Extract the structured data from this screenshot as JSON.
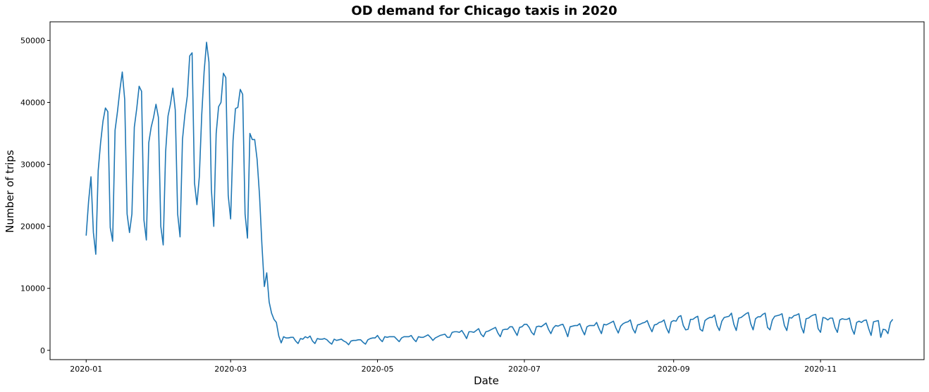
{
  "chart_data": {
    "type": "line",
    "title": "OD demand for Chicago taxis in 2020",
    "xlabel": "Date",
    "ylabel": "Number of trips",
    "xlim": [
      "2019-12-17",
      "2020-12-14"
    ],
    "ylim": [
      -1500,
      53000
    ],
    "grid": false,
    "legend": "none",
    "colors": {
      "line": "#1f77b4",
      "axis": "#000000",
      "background": "#ffffff"
    },
    "x_ticks": [
      {
        "date": "2020-01-01",
        "label": "2020-01"
      },
      {
        "date": "2020-03-01",
        "label": "2020-03"
      },
      {
        "date": "2020-05-01",
        "label": "2020-05"
      },
      {
        "date": "2020-07-01",
        "label": "2020-07"
      },
      {
        "date": "2020-09-01",
        "label": "2020-09"
      },
      {
        "date": "2020-11-01",
        "label": "2020-11"
      }
    ],
    "y_ticks": [
      {
        "value": 0,
        "label": "0"
      },
      {
        "value": 10000,
        "label": "10000"
      },
      {
        "value": 20000,
        "label": "20000"
      },
      {
        "value": 30000,
        "label": "30000"
      },
      {
        "value": 40000,
        "label": "40000"
      },
      {
        "value": 50000,
        "label": "50000"
      }
    ],
    "series": [
      {
        "start_date": "2020-01-01",
        "step_days": 1,
        "values": [
          18500,
          24000,
          28000,
          19000,
          15500,
          29000,
          33500,
          37000,
          39100,
          38500,
          19800,
          17600,
          35500,
          38500,
          42000,
          44900,
          40500,
          22000,
          19000,
          22000,
          36000,
          39000,
          42600,
          41800,
          21000,
          17800,
          33500,
          36000,
          37600,
          39700,
          37600,
          20000,
          17000,
          32000,
          37800,
          39700,
          42300,
          38800,
          22000,
          18300,
          34000,
          38000,
          41000,
          47500,
          48000,
          27000,
          23500,
          28000,
          38000,
          45000,
          49700,
          46500,
          26000,
          20000,
          35000,
          39300,
          40000,
          44700,
          44000,
          25000,
          21200,
          33800,
          39000,
          39200,
          42100,
          41300,
          22000,
          18100,
          35000,
          34000,
          34000,
          30800,
          25000,
          17000,
          10300,
          12500,
          7800,
          6000,
          5000,
          4500,
          2300,
          1200,
          2200,
          2000,
          2000,
          2100,
          2100,
          1500,
          1100,
          1900,
          1800,
          2200,
          2000,
          2300,
          1500,
          1100,
          1900,
          1800,
          1800,
          1900,
          1700,
          1300,
          1000,
          1800,
          1600,
          1700,
          1800,
          1500,
          1300,
          900,
          1500,
          1600,
          1600,
          1700,
          1700,
          1300,
          1000,
          1700,
          1900,
          2000,
          2000,
          2400,
          1800,
          1400,
          2200,
          2100,
          2200,
          2200,
          2200,
          1800,
          1400,
          2000,
          2200,
          2200,
          2200,
          2400,
          1800,
          1400,
          2200,
          2100,
          2100,
          2300,
          2500,
          2100,
          1600,
          2000,
          2200,
          2400,
          2500,
          2600,
          2100,
          2100,
          2900,
          3000,
          3000,
          2900,
          3200,
          2600,
          1900,
          3000,
          3000,
          2900,
          3200,
          3500,
          2600,
          2200,
          3000,
          3100,
          3300,
          3500,
          3700,
          2800,
          2200,
          3300,
          3400,
          3400,
          3800,
          3800,
          3100,
          2400,
          3700,
          3800,
          4200,
          4200,
          3700,
          2900,
          2500,
          3800,
          3900,
          3800,
          4100,
          4400,
          3400,
          2700,
          3600,
          4000,
          3900,
          4100,
          4200,
          3300,
          2200,
          3800,
          3900,
          4000,
          4000,
          4300,
          3300,
          2500,
          3800,
          4000,
          4000,
          4000,
          4500,
          3500,
          2700,
          4200,
          4100,
          4300,
          4500,
          4700,
          3600,
          2800,
          3900,
          4300,
          4500,
          4600,
          4900,
          3500,
          2800,
          4100,
          4200,
          4400,
          4500,
          4800,
          3800,
          3000,
          4100,
          4200,
          4500,
          4600,
          4900,
          3600,
          2800,
          4600,
          4800,
          4700,
          5400,
          5600,
          4000,
          3300,
          3400,
          5000,
          5000,
          5300,
          5500,
          3400,
          3100,
          4800,
          5100,
          5300,
          5300,
          5700,
          4000,
          3200,
          4700,
          5300,
          5400,
          5500,
          6000,
          4200,
          3200,
          5200,
          5300,
          5600,
          5900,
          6100,
          4300,
          3300,
          5100,
          5400,
          5400,
          5800,
          6000,
          3700,
          3300,
          4900,
          5500,
          5600,
          5700,
          5900,
          4000,
          3200,
          5300,
          5200,
          5600,
          5700,
          5900,
          3800,
          2800,
          5100,
          5200,
          5500,
          5700,
          5800,
          3500,
          2900,
          5300,
          5200,
          4900,
          5200,
          5200,
          3700,
          2900,
          4900,
          5100,
          5000,
          5000,
          5200,
          3500,
          2600,
          4500,
          4700,
          4500,
          4800,
          4900,
          3500,
          2400,
          4600,
          4700,
          4800,
          2100,
          3400,
          3300,
          2700,
          4500,
          5000
        ]
      }
    ]
  }
}
